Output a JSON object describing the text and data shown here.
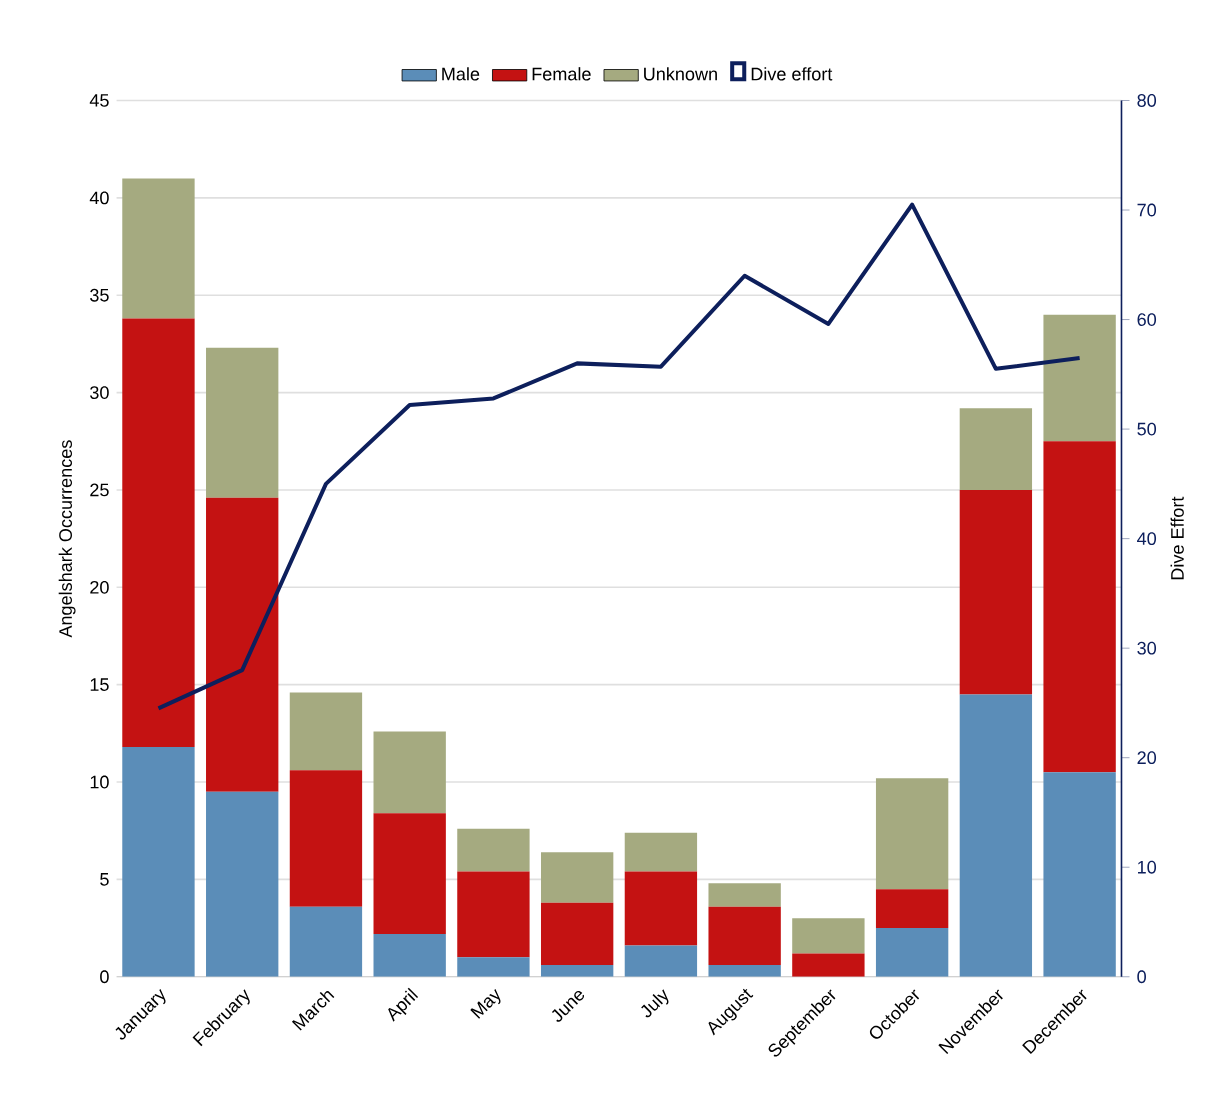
{
  "chart_data": {
    "type": "bar",
    "stacked": true,
    "categories": [
      "January",
      "February",
      "March",
      "April",
      "May",
      "June",
      "July",
      "August",
      "September",
      "October",
      "November",
      "December"
    ],
    "series": [
      {
        "name": "Male",
        "color": "#5b8db8",
        "values": [
          11.8,
          9.5,
          3.6,
          2.2,
          1.0,
          0.6,
          1.6,
          0.6,
          0,
          2.5,
          14.5,
          10.5
        ]
      },
      {
        "name": "Female",
        "color": "#c41212",
        "values": [
          22.0,
          15.1,
          7.0,
          6.2,
          4.4,
          3.2,
          3.8,
          3.0,
          1.2,
          2.0,
          10.5,
          17.0
        ]
      },
      {
        "name": "Unknown",
        "color": "#a5aa80",
        "values": [
          7.2,
          7.7,
          4.0,
          4.2,
          2.2,
          2.6,
          2.0,
          1.2,
          1.8,
          5.7,
          4.2,
          6.5
        ]
      },
      {
        "name": "Dive effort",
        "type": "line",
        "axis": "y2",
        "color": "#0d1f5c",
        "values": [
          24.5,
          28,
          45,
          52.2,
          52.8,
          56,
          55.7,
          64,
          59.6,
          70.5,
          55.5,
          56.5
        ]
      }
    ],
    "ylabel": "Angelshark Occurrences",
    "y2label": "Dive Effort",
    "ylim": [
      0,
      45
    ],
    "yticks": [
      0,
      5,
      10,
      15,
      20,
      25,
      30,
      35,
      40,
      45
    ],
    "y2lim": [
      0,
      80
    ],
    "y2ticks": [
      0,
      10,
      20,
      30,
      40,
      50,
      60,
      70,
      80
    ],
    "grid": "y",
    "legend": "top",
    "marker": "none",
    "line_style": "solid"
  }
}
